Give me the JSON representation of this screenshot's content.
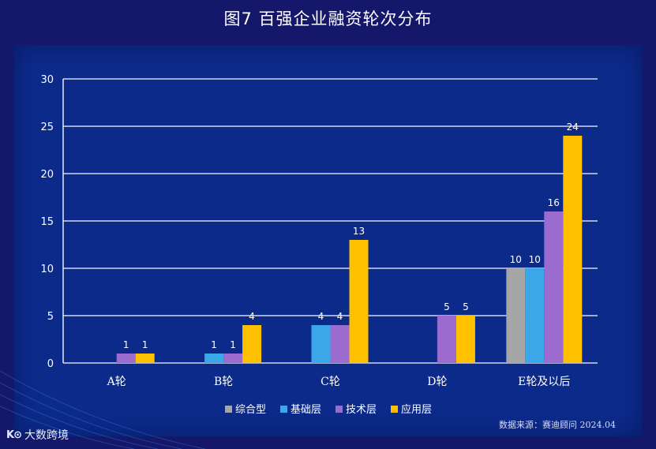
{
  "page_title": "图7 百强企业融资轮次分布",
  "source": "数据来源：赛迪顾问   2024.04",
  "brand": {
    "logo": "K⊙",
    "name": "大数跨境"
  },
  "colors": {
    "background": "#14176a",
    "panel": "#0c2a8a",
    "series": [
      "#a6a6a6",
      "#3aa7e8",
      "#9b6bd0",
      "#ffc000"
    ]
  },
  "chart_data": {
    "type": "bar",
    "title": "图7 百强企业融资轮次分布",
    "categories": [
      "A轮",
      "B轮",
      "C轮",
      "D轮",
      "E轮及以后"
    ],
    "series": [
      {
        "name": "综合型",
        "values": [
          0,
          0,
          0,
          0,
          10
        ]
      },
      {
        "name": "基础层",
        "values": [
          0,
          1,
          4,
          0,
          10
        ]
      },
      {
        "name": "技术层",
        "values": [
          1,
          1,
          4,
          5,
          16
        ]
      },
      {
        "name": "应用层",
        "values": [
          1,
          4,
          13,
          5,
          24
        ]
      }
    ],
    "ylim": [
      0,
      30
    ],
    "yticks": [
      0,
      5,
      10,
      15,
      20,
      25,
      30
    ],
    "grid": true,
    "legend": "bottom",
    "xlabel": "",
    "ylabel": ""
  }
}
